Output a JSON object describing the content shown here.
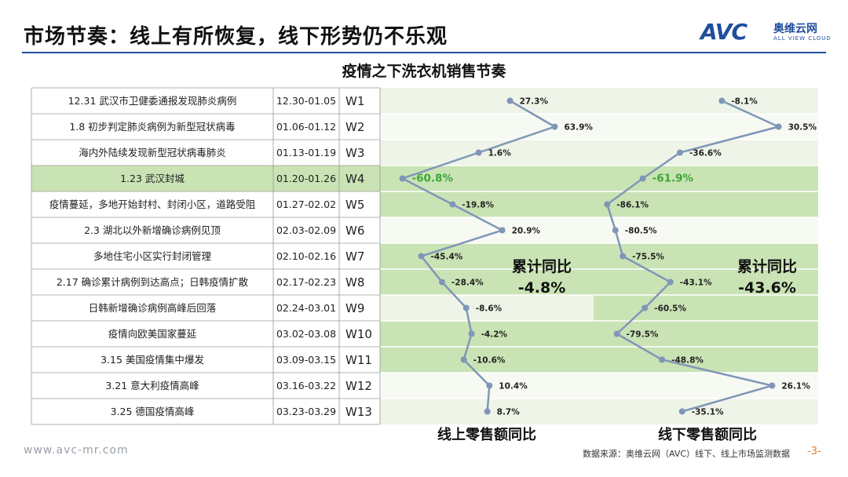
{
  "header": {
    "title": "市场节奏：线上有所恢复，线下形势仍不乐观",
    "logo_text": "AVC",
    "logo_cn": "奥维云网",
    "logo_en": "ALL VIEW CLOUD"
  },
  "chart_data": {
    "type": "table",
    "title": "疫情之下洗衣机销售节奏",
    "rows": [
      {
        "event": "12.31 武汉市卫健委通报发现肺炎病例",
        "dates": "12.30-01.05",
        "week": "W1"
      },
      {
        "event": "1.8 初步判定肺炎病例为新型冠状病毒",
        "dates": "01.06-01.12",
        "week": "W2"
      },
      {
        "event": "海内外陆续发现新型冠状病毒肺炎",
        "dates": "01.13-01.19",
        "week": "W3"
      },
      {
        "event": "1.23 武汉封城",
        "dates": "01.20-01.26",
        "week": "W4"
      },
      {
        "event": "疫情蔓延，多地开始封村、封闭小区，道路受阻",
        "dates": "01.27-02.02",
        "week": "W5"
      },
      {
        "event": "2.3 湖北以外新增确诊病例见顶",
        "dates": "02.03-02.09",
        "week": "W6"
      },
      {
        "event": "多地住宅小区实行封闭管理",
        "dates": "02.10-02.16",
        "week": "W7"
      },
      {
        "event": "2.17 确诊累计病例到达高点；日韩疫情扩散",
        "dates": "02.17-02.23",
        "week": "W8"
      },
      {
        "event": "日韩新增确诊病例高峰后回落",
        "dates": "02.24-03.01",
        "week": "W9"
      },
      {
        "event": "疫情向欧美国家蔓延",
        "dates": "03.02-03.08",
        "week": "W10"
      },
      {
        "event": "3.15 美国疫情集中爆发",
        "dates": "03.09-03.15",
        "week": "W11"
      },
      {
        "event": "3.21 意大利疫情高峰",
        "dates": "03.16-03.22",
        "week": "W12"
      },
      {
        "event": "3.25 德国疫情高峰",
        "dates": "03.23-03.29",
        "week": "W13"
      }
    ],
    "series": [
      {
        "name": "线上零售额同比",
        "values": [
          27.3,
          63.9,
          1.6,
          -60.8,
          -19.8,
          20.9,
          -45.4,
          -28.4,
          -8.6,
          -4.2,
          -10.6,
          10.4,
          8.7
        ],
        "labels": [
          "27.3%",
          "63.9%",
          "1.6%",
          "-60.8%",
          "-19.8%",
          "20.9%",
          "-45.4%",
          "-28.4%",
          "-8.6%",
          "-4.2%",
          "-10.6%",
          "10.4%",
          "8.7%"
        ],
        "xlim": [
          -65,
          70
        ],
        "cumulative_label": "累计同比",
        "cumulative_value": "-4.8%"
      },
      {
        "name": "线下零售额同比",
        "values": [
          -8.1,
          30.5,
          -36.6,
          -61.9,
          -86.1,
          -80.5,
          -75.5,
          -43.1,
          -60.5,
          -79.5,
          -48.8,
          26.1,
          -35.1
        ],
        "labels": [
          "-8.1%",
          "30.5%",
          "-36.6%",
          "-61.9%",
          "-86.1%",
          "-80.5%",
          "-75.5%",
          "-43.1%",
          "-60.5%",
          "-79.5%",
          "-48.8%",
          "26.1%",
          "-35.1%"
        ],
        "xlim": [
          -90,
          35
        ],
        "cumulative_label": "累计同比",
        "cumulative_value": "-43.6%"
      }
    ],
    "highlight_row": 3,
    "colors": {
      "line": "#8096b8",
      "row_green": "#c9e3b4",
      "row_light": "#eef4e8",
      "highlight_label": "#3aa835"
    }
  },
  "footer": {
    "url": "www.avc-mr.com",
    "source": "数据来源：奥维云网（AVC）线下、线上市场监测数据",
    "page": "-3-"
  }
}
